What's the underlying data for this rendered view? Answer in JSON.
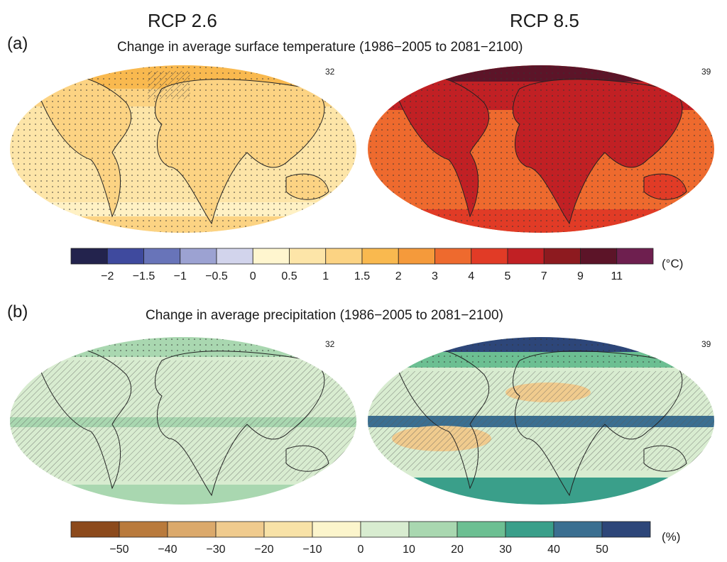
{
  "columns": {
    "left": "RCP 2.6",
    "right": "RCP 8.5"
  },
  "panel_a": {
    "label": "(a)",
    "title": "Change in average surface temperature (1986−2005 to 2081−2100)",
    "left_count": "32",
    "right_count": "39",
    "colorbar": {
      "unit": "(°C)",
      "ticks": [
        "−2",
        "−1.5",
        "−1",
        "−0.5",
        "0",
        "0.5",
        "1",
        "1.5",
        "2",
        "3",
        "4",
        "5",
        "7",
        "9",
        "11"
      ],
      "colors": [
        "#23234d",
        "#3f4a9e",
        "#6874b9",
        "#9ca2d2",
        "#d2d4ec",
        "#fff6cf",
        "#fde5a8",
        "#fcd383",
        "#f9b94f",
        "#f59a3b",
        "#ee6a2e",
        "#e13b26",
        "#c12024",
        "#8d1a1f",
        "#5c1428",
        "#6e1f4f"
      ]
    }
  },
  "panel_b": {
    "label": "(b)",
    "title": "Change in average precipitation (1986−2005 to 2081−2100)",
    "left_count": "32",
    "right_count": "39",
    "colorbar": {
      "unit": "(%)",
      "ticks": [
        "−50",
        "−40",
        "−30",
        "−20",
        "−10",
        "0",
        "10",
        "20",
        "30",
        "40",
        "50"
      ],
      "colors": [
        "#8c4a1c",
        "#b97a3c",
        "#dba96b",
        "#f0cb8e",
        "#f8e2a7",
        "#fcf5cc",
        "#d8ecd0",
        "#a9d7b0",
        "#6cbf92",
        "#3a9f8a",
        "#3b6f91",
        "#2d4679"
      ]
    }
  }
}
